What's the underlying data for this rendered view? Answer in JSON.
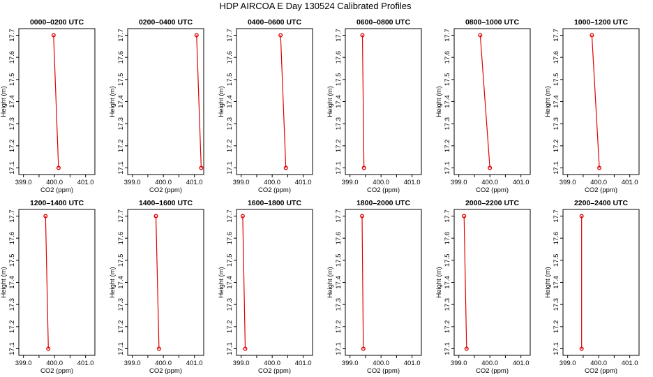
{
  "title": "HDP AIRCOA E  Day 130524  Calibrated Profiles",
  "axis": {
    "xlabel": "CO2 (ppm)",
    "ylabel": "Height (m)",
    "x_ticks": [
      "399.0",
      "400.0",
      "401.0"
    ],
    "y_ticks": [
      "17.1",
      "17.2",
      "17.3",
      "17.4",
      "17.5",
      "17.6",
      "17.7"
    ]
  },
  "chart_data": [
    {
      "type": "line",
      "title": "0000–0200 UTC",
      "xlabel": "CO2 (ppm)",
      "ylabel": "Height (m)",
      "xlim": [
        398.85,
        401.3
      ],
      "ylim": [
        17.07,
        17.73
      ],
      "grid": false,
      "series": [
        {
          "x": [
            399.97,
            400.13
          ],
          "y": [
            17.7,
            17.1
          ]
        }
      ]
    },
    {
      "type": "line",
      "title": "0200–0400 UTC",
      "xlabel": "CO2 (ppm)",
      "ylabel": "Height (m)",
      "xlim": [
        398.85,
        401.3
      ],
      "ylim": [
        17.07,
        17.73
      ],
      "grid": false,
      "series": [
        {
          "x": [
            401.07,
            401.22
          ],
          "y": [
            17.7,
            17.1
          ]
        }
      ]
    },
    {
      "type": "line",
      "title": "0400–0600 UTC",
      "xlabel": "CO2 (ppm)",
      "ylabel": "Height (m)",
      "xlim": [
        398.85,
        401.3
      ],
      "ylim": [
        17.07,
        17.73
      ],
      "grid": false,
      "series": [
        {
          "x": [
            400.27,
            400.44
          ],
          "y": [
            17.7,
            17.1
          ]
        }
      ]
    },
    {
      "type": "line",
      "title": "0600–0800 UTC",
      "xlabel": "CO2 (ppm)",
      "ylabel": "Height (m)",
      "xlim": [
        398.85,
        401.3
      ],
      "ylim": [
        17.07,
        17.73
      ],
      "grid": false,
      "series": [
        {
          "x": [
            399.4,
            399.45
          ],
          "y": [
            17.7,
            17.1
          ]
        }
      ]
    },
    {
      "type": "line",
      "title": "0800–1000 UTC",
      "xlabel": "CO2 (ppm)",
      "ylabel": "Height (m)",
      "xlim": [
        398.85,
        401.3
      ],
      "ylim": [
        17.07,
        17.73
      ],
      "grid": false,
      "series": [
        {
          "x": [
            399.69,
            400.0
          ],
          "y": [
            17.7,
            17.1
          ]
        }
      ]
    },
    {
      "type": "line",
      "title": "1000–1200 UTC",
      "xlabel": "CO2 (ppm)",
      "ylabel": "Height (m)",
      "xlim": [
        398.85,
        401.3
      ],
      "ylim": [
        17.07,
        17.73
      ],
      "grid": false,
      "series": [
        {
          "x": [
            399.78,
            400.02
          ],
          "y": [
            17.7,
            17.1
          ]
        }
      ]
    },
    {
      "type": "line",
      "title": "1200–1400 UTC",
      "xlabel": "CO2 (ppm)",
      "ylabel": "Height (m)",
      "xlim": [
        398.85,
        401.3
      ],
      "ylim": [
        17.07,
        17.73
      ],
      "grid": false,
      "series": [
        {
          "x": [
            399.71,
            399.8
          ],
          "y": [
            17.7,
            17.1
          ]
        }
      ]
    },
    {
      "type": "line",
      "title": "1400–1600 UTC",
      "xlabel": "CO2 (ppm)",
      "ylabel": "Height (m)",
      "xlim": [
        398.85,
        401.3
      ],
      "ylim": [
        17.07,
        17.73
      ],
      "grid": false,
      "series": [
        {
          "x": [
            399.76,
            399.86
          ],
          "y": [
            17.7,
            17.1
          ]
        }
      ]
    },
    {
      "type": "line",
      "title": "1600–1800 UTC",
      "xlabel": "CO2 (ppm)",
      "ylabel": "Height (m)",
      "xlim": [
        398.85,
        401.3
      ],
      "ylim": [
        17.07,
        17.73
      ],
      "grid": false,
      "series": [
        {
          "x": [
            399.05,
            399.13
          ],
          "y": [
            17.7,
            17.1
          ]
        }
      ]
    },
    {
      "type": "line",
      "title": "1800–2000 UTC",
      "xlabel": "CO2 (ppm)",
      "ylabel": "Height (m)",
      "xlim": [
        398.85,
        401.3
      ],
      "ylim": [
        17.07,
        17.73
      ],
      "grid": false,
      "series": [
        {
          "x": [
            399.39,
            399.43
          ],
          "y": [
            17.7,
            17.1
          ]
        }
      ]
    },
    {
      "type": "line",
      "title": "2000–2200 UTC",
      "xlabel": "CO2 (ppm)",
      "ylabel": "Height (m)",
      "xlim": [
        398.85,
        401.3
      ],
      "ylim": [
        17.07,
        17.73
      ],
      "grid": false,
      "series": [
        {
          "x": [
            399.17,
            399.25
          ],
          "y": [
            17.7,
            17.1
          ]
        }
      ]
    },
    {
      "type": "line",
      "title": "2200–2400 UTC",
      "xlabel": "CO2 (ppm)",
      "ylabel": "Height (m)",
      "xlim": [
        398.85,
        401.3
      ],
      "ylim": [
        17.07,
        17.73
      ],
      "grid": false,
      "series": [
        {
          "x": [
            399.45,
            399.45
          ],
          "y": [
            17.7,
            17.1
          ]
        }
      ]
    }
  ],
  "colors": {
    "line": "#e00000",
    "axis": "#000000"
  }
}
